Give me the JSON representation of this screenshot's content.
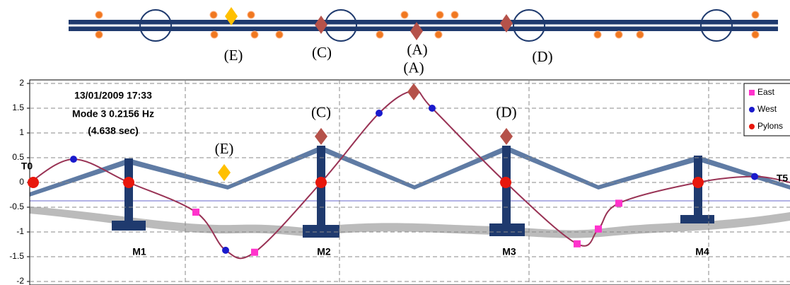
{
  "chart_data": {
    "type": "line",
    "info": [
      "13/01/2009 17:33",
      "Mode 3  0.2156 Hz",
      "(4.638 sec)"
    ],
    "annotations": [
      "T0",
      "M1",
      "M2",
      "M3",
      "M4",
      "T5"
    ],
    "ylim": [
      -2,
      2
    ],
    "yticks": [
      -2,
      -1.5,
      -1,
      -0.5,
      0,
      0.5,
      1,
      1.5,
      2
    ],
    "xlim": [
      0,
      1075
    ],
    "xgrid": [
      220,
      438,
      706,
      960
    ],
    "grid": true,
    "curve": {
      "color": "#993355",
      "x": [
        0,
        62,
        140,
        235,
        277,
        318,
        412,
        494,
        543,
        569,
        673,
        774,
        804,
        833,
        945,
        1025,
        1075
      ],
      "values": [
        0,
        0.47,
        0,
        -0.6,
        -1.37,
        -1.41,
        0,
        1.4,
        1.85,
        1.5,
        0,
        -1.24,
        -0.94,
        -0.42,
        0,
        0.12,
        0
      ]
    },
    "series": [
      {
        "name": "East",
        "color": "#ff33cc",
        "marker": "square",
        "x": [
          235,
          318,
          774,
          804,
          833
        ],
        "values": [
          -0.6,
          -1.41,
          -1.24,
          -0.94,
          -0.42
        ]
      },
      {
        "name": "West",
        "color": "#1a1acc",
        "marker": "circle",
        "x": [
          62,
          277,
          494,
          569,
          1025
        ],
        "values": [
          0.47,
          -1.37,
          1.4,
          1.5,
          0.12
        ]
      },
      {
        "name": "Pylons",
        "color": "#e8170c",
        "marker": "circle",
        "x": [
          5,
          140,
          412,
          673,
          945
        ],
        "values": [
          0,
          0,
          0,
          0,
          0
        ]
      }
    ],
    "highlights": {
      "labels": [
        "(A)",
        "(C)",
        "(D)",
        "(E)"
      ],
      "colors": [
        "#b5524a",
        "#b5524a",
        "#b5524a",
        "#ffc000"
      ],
      "x": [
        543,
        412,
        674,
        275
      ],
      "values": [
        1.83,
        0.93,
        0.93,
        0.2
      ]
    }
  }
}
